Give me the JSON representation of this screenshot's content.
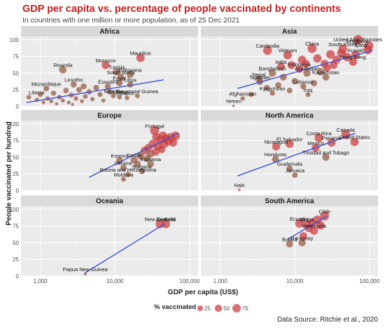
{
  "title": "GDP per capita vs. percentage of people vaccinated by continents",
  "subtitle": "In countries with one million or more population, as of 25 Dec 2021",
  "source": "Data Source: Ritchie et al., 2020",
  "colors": {
    "point": "#c83a3a",
    "point_small": "#8c5a3c",
    "trend": "#3b50d8",
    "panel_bg": "#ebebeb",
    "strip_bg": "#d9d9d9",
    "grid": "#ffffff",
    "title": "#c22020"
  },
  "chart_data": {
    "type": "scatter",
    "xlabel": "GDP per capita (US$)",
    "ylabel": "People vaccinated per hundred",
    "xscale": "log10",
    "xlim": [
      550,
      130000
    ],
    "ylim": [
      0,
      105
    ],
    "xticks": [
      1000,
      10000,
      100000
    ],
    "xtick_labels": [
      "1,000",
      "10,000",
      "100,000"
    ],
    "yticks": [
      0,
      25,
      50,
      75,
      100
    ],
    "ytick_labels": [
      "0",
      "25",
      "50",
      "75",
      "100"
    ],
    "grid": true,
    "legend": {
      "title": "% vaccinated",
      "placement": "bottom",
      "entries": [
        {
          "label": "25",
          "value": 25
        },
        {
          "label": "50",
          "value": 50
        },
        {
          "label": "75",
          "value": 75
        }
      ]
    },
    "facets": [
      {
        "name": "Africa",
        "trend": [
          [
            650,
            6
          ],
          [
            45000,
            40
          ]
        ],
        "points": [
          {
            "label": "Mauritius",
            "x": 22000,
            "y": 73
          },
          {
            "label": "Morocco",
            "x": 7500,
            "y": 62
          },
          {
            "label": "Rwanda",
            "x": 2000,
            "y": 55
          },
          {
            "label": "Tunisia",
            "x": 10500,
            "y": 52
          },
          {
            "label": "Botswana",
            "x": 16000,
            "y": 48
          },
          {
            "label": "South Africa",
            "x": 12000,
            "y": 44
          },
          {
            "label": "Egypt",
            "x": 11500,
            "y": 35
          },
          {
            "label": "Libya",
            "x": 16000,
            "y": 33
          },
          {
            "label": "Eswatini",
            "x": 8000,
            "y": 30
          },
          {
            "label": "Lesotho",
            "x": 2800,
            "y": 33
          },
          {
            "label": "Mozambique",
            "x": 1200,
            "y": 27
          },
          {
            "label": "Liberia",
            "x": 700,
            "y": 14
          },
          {
            "label": "Gabon",
            "x": 14500,
            "y": 13
          },
          {
            "label": "Namibia",
            "x": 9500,
            "y": 16
          },
          {
            "label": "Algeria",
            "x": 11500,
            "y": 14
          },
          {
            "label": "Equatorial Guinea",
            "x": 20000,
            "y": 16
          },
          {
            "label": "",
            "x": 900,
            "y": 10
          },
          {
            "label": "",
            "x": 1000,
            "y": 18
          },
          {
            "label": "",
            "x": 1100,
            "y": 6
          },
          {
            "label": "",
            "x": 1250,
            "y": 12
          },
          {
            "label": "",
            "x": 1400,
            "y": 8
          },
          {
            "label": "",
            "x": 1500,
            "y": 20
          },
          {
            "label": "",
            "x": 1650,
            "y": 4
          },
          {
            "label": "",
            "x": 1800,
            "y": 14
          },
          {
            "label": "",
            "x": 2000,
            "y": 9
          },
          {
            "label": "",
            "x": 2200,
            "y": 24
          },
          {
            "label": "",
            "x": 2400,
            "y": 6
          },
          {
            "label": "",
            "x": 2600,
            "y": 17
          },
          {
            "label": "",
            "x": 3000,
            "y": 12
          },
          {
            "label": "",
            "x": 3300,
            "y": 25
          },
          {
            "label": "",
            "x": 3600,
            "y": 8
          },
          {
            "label": "",
            "x": 4000,
            "y": 15
          },
          {
            "label": "",
            "x": 4500,
            "y": 22
          },
          {
            "label": "",
            "x": 5000,
            "y": 11
          },
          {
            "label": "",
            "x": 5600,
            "y": 28
          },
          {
            "label": "",
            "x": 6300,
            "y": 18
          },
          {
            "label": "",
            "x": 7000,
            "y": 9
          },
          {
            "label": "",
            "x": 8500,
            "y": 22
          },
          {
            "label": "",
            "x": 3800,
            "y": 30
          },
          {
            "label": "",
            "x": 2700,
            "y": 3
          }
        ]
      },
      {
        "name": "Asia",
        "trend": [
          [
            1700,
            27
          ],
          [
            110000,
            84
          ]
        ],
        "points": [
          {
            "label": "China",
            "x": 17000,
            "y": 87
          },
          {
            "label": "United Arab Emirates",
            "x": 70000,
            "y": 100
          },
          {
            "label": "Singapore",
            "x": 98000,
            "y": 91
          },
          {
            "label": "South Korea",
            "x": 44000,
            "y": 86
          },
          {
            "label": "Kuwait",
            "x": 65000,
            "y": 77
          },
          {
            "label": "Qatar",
            "x": 95000,
            "y": 85
          },
          {
            "label": "Cambodia",
            "x": 4300,
            "y": 84
          },
          {
            "label": "Vietnam",
            "x": 8000,
            "y": 77
          },
          {
            "label": "Hong Kong",
            "x": 60000,
            "y": 67
          },
          {
            "label": "Kazakhstan",
            "x": 26000,
            "y": 44
          },
          {
            "label": "India",
            "x": 6500,
            "y": 60
          },
          {
            "label": "Bangladesh",
            "x": 5000,
            "y": 50
          },
          {
            "label": "Indonesia",
            "x": 11500,
            "y": 56
          },
          {
            "label": "Azerbaijan",
            "x": 14500,
            "y": 50
          },
          {
            "label": "Nepal",
            "x": 3300,
            "y": 41
          },
          {
            "label": "Tajikistan",
            "x": 3400,
            "y": 37
          },
          {
            "label": "Lebanon",
            "x": 13000,
            "y": 30
          },
          {
            "label": "Kyrgyzstan",
            "x": 5000,
            "y": 20
          },
          {
            "label": "Iraq",
            "x": 15000,
            "y": 18
          },
          {
            "label": "Afghanistan",
            "x": 2000,
            "y": 12
          },
          {
            "label": "Yemen",
            "x": 1500,
            "y": 1
          },
          {
            "label": "",
            "x": 9000,
            "y": 62
          },
          {
            "label": "",
            "x": 12500,
            "y": 70
          },
          {
            "label": "",
            "x": 20000,
            "y": 72
          },
          {
            "label": "",
            "x": 25000,
            "y": 64
          },
          {
            "label": "",
            "x": 30000,
            "y": 78
          },
          {
            "label": "",
            "x": 36000,
            "y": 70
          },
          {
            "label": "",
            "x": 42000,
            "y": 80
          },
          {
            "label": "",
            "x": 50000,
            "y": 74
          },
          {
            "label": "",
            "x": 22000,
            "y": 52
          },
          {
            "label": "",
            "x": 7000,
            "y": 44
          },
          {
            "label": "",
            "x": 10000,
            "y": 38
          },
          {
            "label": "",
            "x": 18000,
            "y": 35
          },
          {
            "label": "",
            "x": 4200,
            "y": 28
          },
          {
            "label": "",
            "x": 6000,
            "y": 32
          },
          {
            "label": "",
            "x": 27000,
            "y": 58
          },
          {
            "label": "",
            "x": 14000,
            "y": 64
          },
          {
            "label": "",
            "x": 33000,
            "y": 62
          },
          {
            "label": "",
            "x": 8500,
            "y": 24
          },
          {
            "label": "",
            "x": 2600,
            "y": 18
          }
        ]
      },
      {
        "name": "Europe",
        "trend": [
          [
            4500,
            20
          ],
          [
            70000,
            86
          ]
        ],
        "points": [
          {
            "label": "Portugal",
            "x": 34000,
            "y": 90
          },
          {
            "label": "Kosovo",
            "x": 11500,
            "y": 45
          },
          {
            "label": "Serbia",
            "x": 18000,
            "y": 46
          },
          {
            "label": "Ukraine",
            "x": 13000,
            "y": 34
          },
          {
            "label": "Romania",
            "x": 30000,
            "y": 40
          },
          {
            "label": "Bosnia and Herzegovina",
            "x": 15000,
            "y": 24
          },
          {
            "label": "Moldova",
            "x": 13000,
            "y": 17
          },
          {
            "label": "Bulgaria",
            "x": 23000,
            "y": 29
          },
          {
            "label": "",
            "x": 36000,
            "y": 80
          },
          {
            "label": "",
            "x": 40000,
            "y": 76
          },
          {
            "label": "",
            "x": 44000,
            "y": 82
          },
          {
            "label": "",
            "x": 48000,
            "y": 78
          },
          {
            "label": "",
            "x": 52000,
            "y": 74
          },
          {
            "label": "",
            "x": 56000,
            "y": 80
          },
          {
            "label": "",
            "x": 60000,
            "y": 72
          },
          {
            "label": "",
            "x": 32000,
            "y": 70
          },
          {
            "label": "",
            "x": 28000,
            "y": 64
          },
          {
            "label": "",
            "x": 25000,
            "y": 60
          },
          {
            "label": "",
            "x": 30000,
            "y": 55
          },
          {
            "label": "",
            "x": 35000,
            "y": 58
          },
          {
            "label": "",
            "x": 22000,
            "y": 52
          },
          {
            "label": "",
            "x": 27000,
            "y": 48
          },
          {
            "label": "",
            "x": 38000,
            "y": 66
          },
          {
            "label": "",
            "x": 46000,
            "y": 70
          },
          {
            "label": "",
            "x": 65000,
            "y": 82
          },
          {
            "label": "",
            "x": 42000,
            "y": 62
          },
          {
            "label": "",
            "x": 20000,
            "y": 40
          }
        ]
      },
      {
        "name": "North America",
        "trend": [
          [
            1700,
            22
          ],
          [
            65000,
            86
          ]
        ],
        "points": [
          {
            "label": "Costa Rica",
            "x": 21000,
            "y": 79
          },
          {
            "label": "Canada",
            "x": 48000,
            "y": 84
          },
          {
            "label": "Panama",
            "x": 31000,
            "y": 72
          },
          {
            "label": "United States",
            "x": 63000,
            "y": 73
          },
          {
            "label": "El Salvador",
            "x": 8500,
            "y": 70
          },
          {
            "label": "Nicaragua",
            "x": 5600,
            "y": 66
          },
          {
            "label": "Mexico",
            "x": 19000,
            "y": 64
          },
          {
            "label": "Trinidad and Tobago",
            "x": 26000,
            "y": 50
          },
          {
            "label": "Honduras",
            "x": 5500,
            "y": 47
          },
          {
            "label": "Guatemala",
            "x": 8500,
            "y": 33
          },
          {
            "label": "Jamaica",
            "x": 10000,
            "y": 23
          },
          {
            "label": "Haiti",
            "x": 1800,
            "y": 1
          }
        ]
      },
      {
        "name": "Oceania",
        "trend": [
          [
            4000,
            5
          ],
          [
            46000,
            78
          ]
        ],
        "points": [
          {
            "label": "New Zealand",
            "x": 40000,
            "y": 78
          },
          {
            "label": "Australia",
            "x": 48000,
            "y": 78
          },
          {
            "label": "Papua New Guinea",
            "x": 4000,
            "y": 3
          }
        ]
      },
      {
        "name": "South America",
        "trend": [
          [
            8000,
            55
          ],
          [
            27000,
            90
          ]
        ],
        "points": [
          {
            "label": "Chile",
            "x": 25000,
            "y": 90
          },
          {
            "label": "Ecuador",
            "x": 11500,
            "y": 79
          },
          {
            "label": "Brazil",
            "x": 14500,
            "y": 77
          },
          {
            "label": "Venezuela",
            "x": 18000,
            "y": 68
          },
          {
            "label": "Bolivia",
            "x": 8500,
            "y": 48
          },
          {
            "label": "Paraguay",
            "x": 12500,
            "y": 50
          },
          {
            "label": "",
            "x": 17000,
            "y": 80
          },
          {
            "label": "",
            "x": 20000,
            "y": 84
          },
          {
            "label": "",
            "x": 22000,
            "y": 76
          },
          {
            "label": "",
            "x": 15500,
            "y": 72
          },
          {
            "label": "",
            "x": 13000,
            "y": 60
          }
        ]
      }
    ]
  }
}
